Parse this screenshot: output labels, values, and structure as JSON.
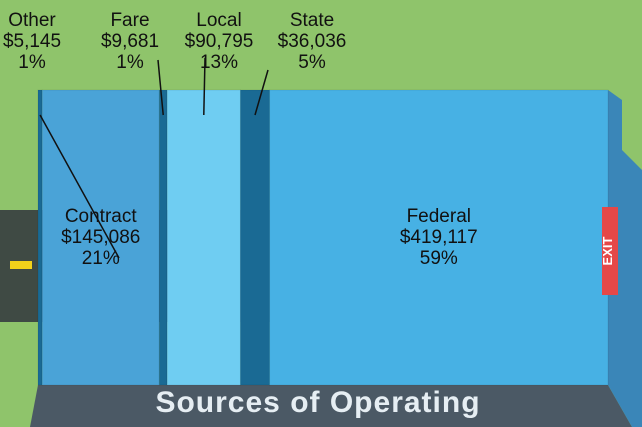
{
  "chart_data": {
    "type": "bus",
    "title": "Sources of Operating",
    "sign": "EXIT",
    "categories": [
      "Other",
      "Contract",
      "Fare",
      "Local",
      "State",
      "Federal"
    ],
    "values": [
      5145,
      145086,
      9681,
      90795,
      36036,
      419117
    ],
    "value_labels": [
      "$5,145",
      "$145,086",
      "$9,681",
      "$90,795",
      "$36,036",
      "$419,117"
    ],
    "percent_labels": [
      "1%",
      "21%",
      "1%",
      "13%",
      "5%",
      "59%"
    ],
    "colors": [
      "#1a6a94",
      "#4aa3d7",
      "#1a6a94",
      "#6fcdf2",
      "#1a6a94",
      "#47b1e4"
    ]
  }
}
